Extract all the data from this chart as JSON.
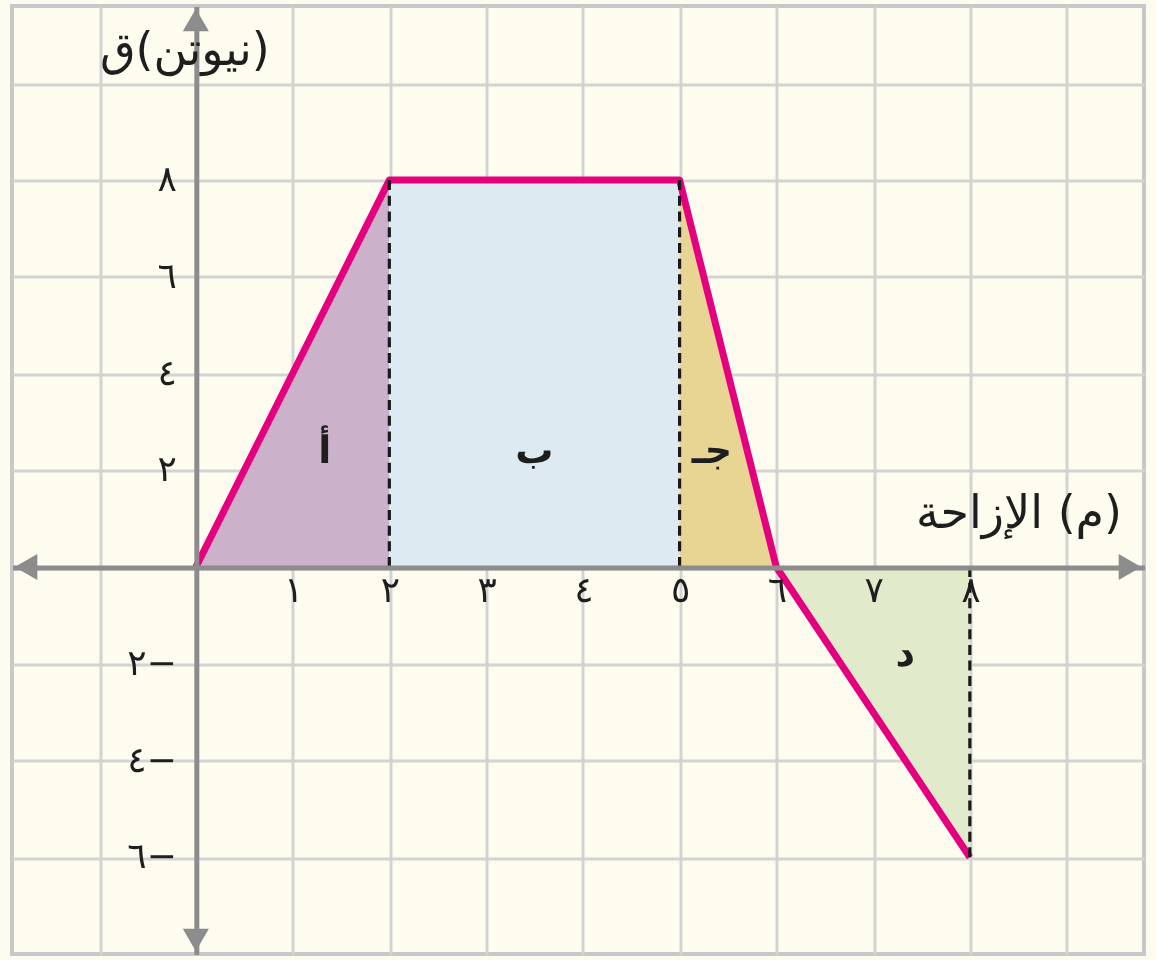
{
  "chart_data": {
    "type": "line",
    "xlabel": "(م) الإزاحة",
    "ylabel": "(نيوتن)ق",
    "xlim": [
      -1.9,
      9.8
    ],
    "ylim": [
      -8,
      11.6
    ],
    "xticks": [
      {
        "value": -1,
        "label": null
      },
      {
        "value": 0,
        "label": null
      },
      {
        "value": 1,
        "label": "١"
      },
      {
        "value": 2,
        "label": "٢"
      },
      {
        "value": 3,
        "label": "٣"
      },
      {
        "value": 4,
        "label": "٤"
      },
      {
        "value": 5,
        "label": "٥"
      },
      {
        "value": 6,
        "label": "٦"
      },
      {
        "value": 7,
        "label": "٧"
      },
      {
        "value": 8,
        "label": "٨"
      },
      {
        "value": 9,
        "label": null
      }
    ],
    "yticks": [
      {
        "value": -6,
        "label": "٦−"
      },
      {
        "value": -4,
        "label": "٤−"
      },
      {
        "value": -2,
        "label": "٢−"
      },
      {
        "value": 0,
        "label": null
      },
      {
        "value": 2,
        "label": "٢"
      },
      {
        "value": 4,
        "label": "٤"
      },
      {
        "value": 6,
        "label": "٦"
      },
      {
        "value": 8,
        "label": "٨"
      },
      {
        "value": 10,
        "label": null
      }
    ],
    "grid": true,
    "series": [
      {
        "type": "area",
        "name": "أ",
        "color": "#cbb1ca",
        "x": [
          0,
          2
        ],
        "values": [
          0,
          8
        ]
      },
      {
        "type": "area",
        "name": "ب",
        "color": "#deeaf1",
        "x": [
          2,
          5
        ],
        "values": [
          8,
          8
        ]
      },
      {
        "type": "area",
        "name": "جـ",
        "color": "#e8d594",
        "x": [
          5,
          6
        ],
        "values": [
          8,
          0
        ]
      },
      {
        "type": "area",
        "name": "د",
        "color": "#e1eacb",
        "x": [
          6,
          8
        ],
        "values": [
          0,
          -6
        ]
      },
      {
        "color": "#e5007e",
        "line_style": "solid",
        "x": [
          0,
          2,
          5,
          6,
          8
        ],
        "values": [
          0,
          8,
          8,
          0,
          -6
        ]
      },
      {
        "color": "#1a1a1a",
        "line_style": "dashed",
        "x": [
          2,
          2
        ],
        "values": [
          0,
          8
        ]
      },
      {
        "color": "#1a1a1a",
        "line_style": "dashed",
        "x": [
          5,
          5
        ],
        "values": [
          0,
          8
        ]
      },
      {
        "color": "#1a1a1a",
        "line_style": "dashed",
        "x": [
          8,
          8
        ],
        "values": [
          0,
          -6
        ]
      }
    ]
  }
}
